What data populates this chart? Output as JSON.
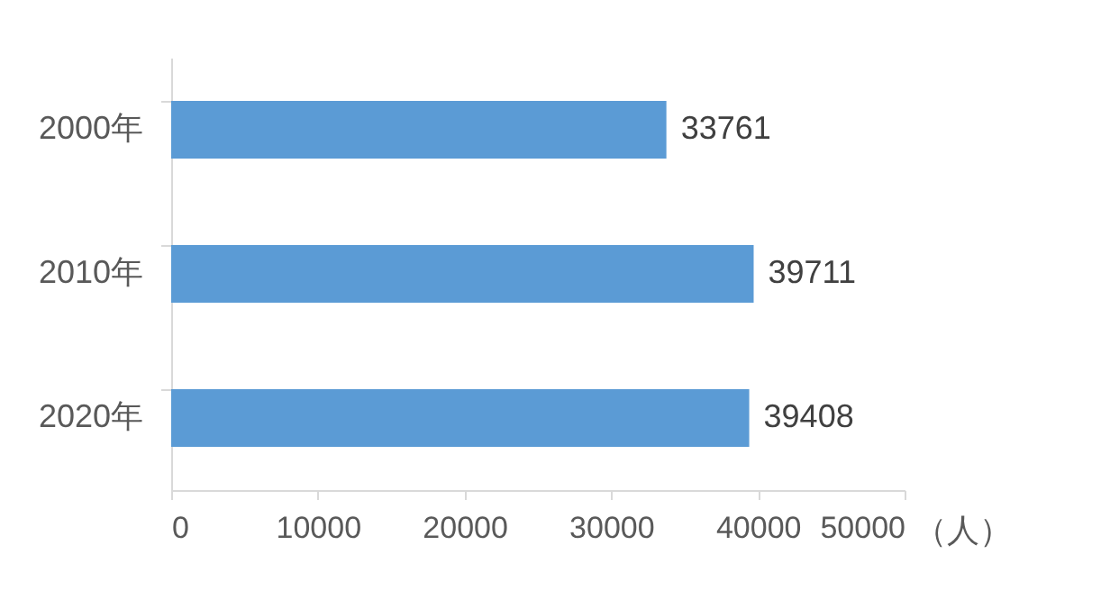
{
  "chart_data": {
    "type": "bar",
    "orientation": "horizontal",
    "categories": [
      "2000年",
      "2010年",
      "2020年"
    ],
    "values": [
      33761,
      39711,
      39408
    ],
    "color": "#5b9bd5",
    "xlim": [
      0,
      50000
    ],
    "xticks": [
      0,
      10000,
      20000,
      30000,
      40000,
      50000
    ],
    "xlabel": "（人）",
    "data_labels": true,
    "grid": false
  }
}
